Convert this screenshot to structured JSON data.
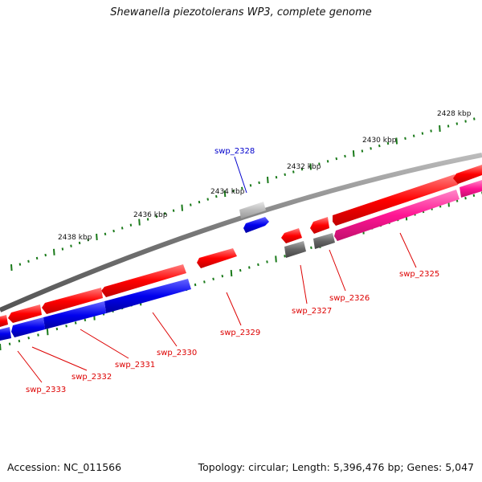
{
  "title": "Shewanella piezotolerans WP3, complete genome",
  "footer": {
    "accession": "Accession: NC_011566",
    "topology": "Topology: circular; Length: 5,396,476 bp; Genes: 5,047"
  },
  "colors": {
    "forward_cds": "#ff0000",
    "reverse_cds": "#0000ee",
    "rna_feature": "#ff1493",
    "grey_feature": "#666666",
    "light_grey_feature": "#bbbbbb",
    "backbone": "#888888",
    "ticks": "#1a7a1a",
    "label_red": "#dd0000",
    "label_blue": "#0000cc"
  },
  "scale_labels": [
    "2428 kbp",
    "2430 kbp",
    "2432 kbp",
    "2434 kbp",
    "2436 kbp",
    "2438 kbp"
  ],
  "gene_labels": [
    {
      "text": "swp_2325",
      "color": "red"
    },
    {
      "text": "swp_2326",
      "color": "red"
    },
    {
      "text": "swp_2327",
      "color": "red"
    },
    {
      "text": "swp_2328",
      "color": "blue"
    },
    {
      "text": "swp_2329",
      "color": "red"
    },
    {
      "text": "swp_2330",
      "color": "red"
    },
    {
      "text": "swp_2331",
      "color": "red"
    },
    {
      "text": "swp_2332",
      "color": "red"
    },
    {
      "text": "swp_2333",
      "color": "red"
    }
  ]
}
